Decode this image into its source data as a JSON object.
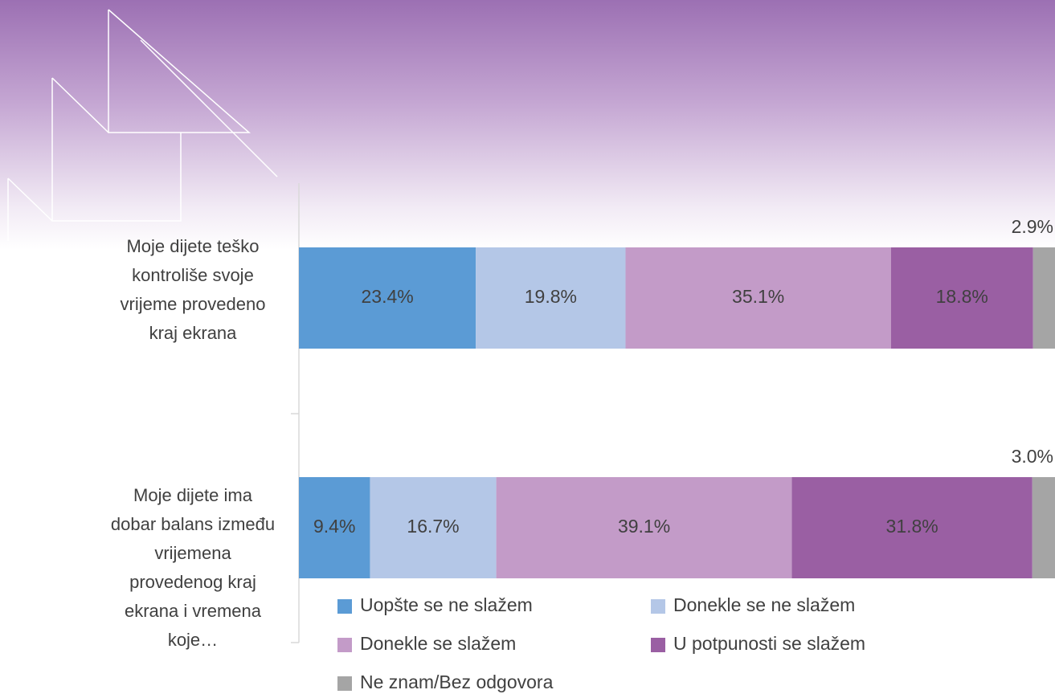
{
  "chart_data": {
    "type": "stacked-bar-horizontal",
    "categories": [
      "Moje dijete teško kontroliše svoje vrijeme provedeno kraj ekrana",
      "Moje dijete ima dobar balans između vrijemena provedenog kraj ekrana i vremena koje…"
    ],
    "series": [
      {
        "name": "Uopšte se ne slažem",
        "color": "#5b9bd5",
        "values": [
          23.4,
          9.4
        ],
        "value_labels": [
          "23.4%",
          "9.4%"
        ]
      },
      {
        "name": "Donekle se ne slažem",
        "color": "#b4c7e7",
        "values": [
          19.8,
          16.7
        ],
        "value_labels": [
          "19.8%",
          "16.7%"
        ]
      },
      {
        "name": "Donekle se slažem",
        "color": "#c39bc8",
        "values": [
          35.1,
          39.1
        ],
        "value_labels": [
          "35.1%",
          "39.1%"
        ]
      },
      {
        "name": "U potpunosti se slažem",
        "color": "#9a5fa3",
        "values": [
          18.8,
          31.8
        ],
        "value_labels": [
          "18.8%",
          "31.8%"
        ]
      },
      {
        "name": "Ne znam/Bez odgovora",
        "color": "#a5a5a5",
        "values": [
          2.9,
          3.0
        ],
        "value_labels": [
          "2.9%",
          "3.0%"
        ]
      }
    ]
  }
}
